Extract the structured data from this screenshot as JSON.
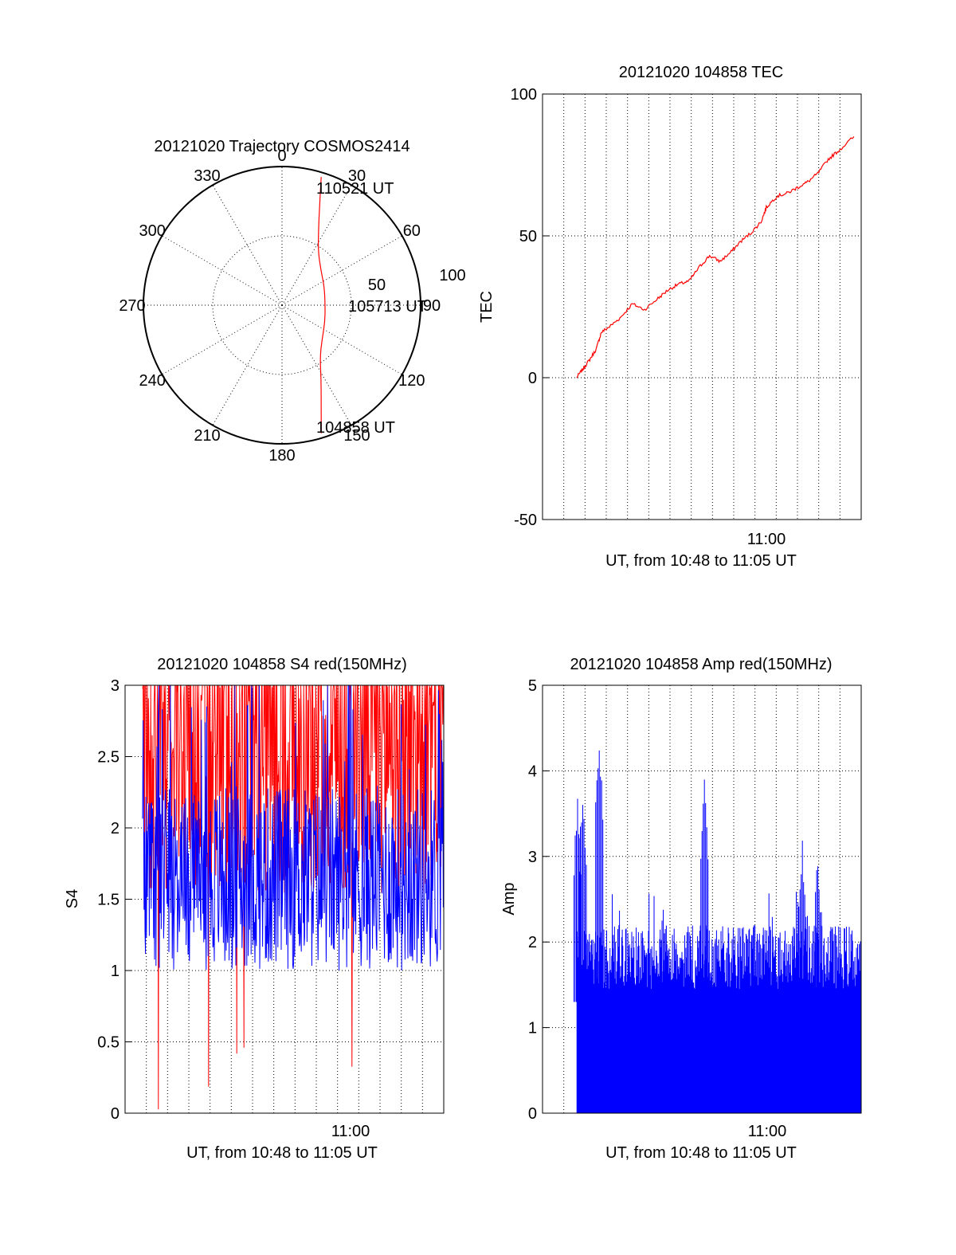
{
  "chart_data": [
    {
      "type": "polar",
      "title": "20121020 Trajectory COSMOS2414",
      "angle_ticks": [
        "0",
        "30",
        "60",
        "90",
        "120",
        "150",
        "180",
        "210",
        "240",
        "270",
        "300",
        "330"
      ],
      "radius_ticks": [
        "50",
        "100"
      ],
      "grid": true,
      "series": [
        {
          "color": "#ff0000",
          "points_az_el": [
            [
              17,
              3
            ],
            [
              21,
              22
            ],
            [
              26,
              36
            ],
            [
              34,
              48
            ],
            [
              48,
              56
            ],
            [
              66,
              60
            ],
            [
              90,
              62
            ],
            [
              112,
              60
            ],
            [
              130,
              56
            ],
            [
              144,
              48
            ],
            [
              152,
              36
            ],
            [
              158,
              22
            ],
            [
              163,
              3
            ]
          ]
        }
      ],
      "annotations": [
        {
          "text": "110521 UT"
        },
        {
          "text": "105713 UT"
        },
        {
          "text": "104858 UT"
        }
      ]
    },
    {
      "type": "line",
      "title": "20121020 104858 TEC",
      "xlabel": "UT, from 10:48 to 11:05 UT",
      "ylabel": "TEC",
      "xlim": [
        10.783,
        11.092
      ],
      "ylim": [
        -50,
        100
      ],
      "yticks": [
        "-50",
        "0",
        "50",
        "100"
      ],
      "xtick_label": "11:00",
      "grid": true,
      "series": [
        {
          "color": "#ff0000",
          "x": [
            10.816,
            10.822,
            10.828,
            10.835,
            10.84,
            10.848,
            10.858,
            10.87,
            10.882,
            10.895,
            10.905,
            10.915,
            10.925,
            10.935,
            10.945,
            10.955,
            10.965,
            10.975,
            10.985,
            10.995,
            11.0,
            11.01,
            11.02,
            11.03,
            11.04,
            11.05,
            11.06,
            11.07,
            11.085
          ],
          "y": [
            0,
            3,
            6,
            10,
            16,
            18,
            21,
            26,
            24,
            28,
            31,
            33,
            34,
            39,
            43,
            41,
            44,
            48,
            51,
            55,
            60,
            64,
            65,
            67,
            69,
            72,
            77,
            80,
            85
          ]
        }
      ]
    },
    {
      "type": "line",
      "title": "20121020 104858 S4 red(150MHz)",
      "xlabel": "UT, from 10:48 to 11:05 UT",
      "ylabel": "S4",
      "xlim": [
        10.783,
        11.092
      ],
      "ylim": [
        0,
        3
      ],
      "yticks": [
        "0",
        "0.5",
        "1",
        "1.5",
        "2",
        "2.5",
        "3"
      ],
      "xtick_label": "11:00",
      "grid": true,
      "series": [
        {
          "color": "#ff0000",
          "approx_range": [
            0,
            3
          ],
          "typical": 2.3
        },
        {
          "color": "#0000ff",
          "approx_range": [
            0.85,
            3
          ],
          "typical": 1.7
        }
      ]
    },
    {
      "type": "bar",
      "title": "20121020 104858 Amp red(150MHz)",
      "xlabel": "UT, from 10:48 to 11:05 UT",
      "ylabel": "Amp",
      "xlim": [
        10.783,
        11.092
      ],
      "ylim": [
        0,
        5
      ],
      "yticks": [
        "0",
        "1",
        "2",
        "3",
        "4",
        "5"
      ],
      "xtick_label": "11:00",
      "grid": true,
      "series": [
        {
          "color": "#0000ff",
          "x_start": 10.816,
          "x_end": 11.092,
          "typical": 1.8,
          "peaks": [
            [
              10.817,
              3.8
            ],
            [
              10.822,
              3.85
            ],
            [
              10.838,
              4.45
            ],
            [
              10.9,
              2.5
            ],
            [
              10.94,
              4.0
            ],
            [
              11.035,
              3.2
            ],
            [
              11.05,
              3.1
            ]
          ]
        }
      ]
    }
  ]
}
